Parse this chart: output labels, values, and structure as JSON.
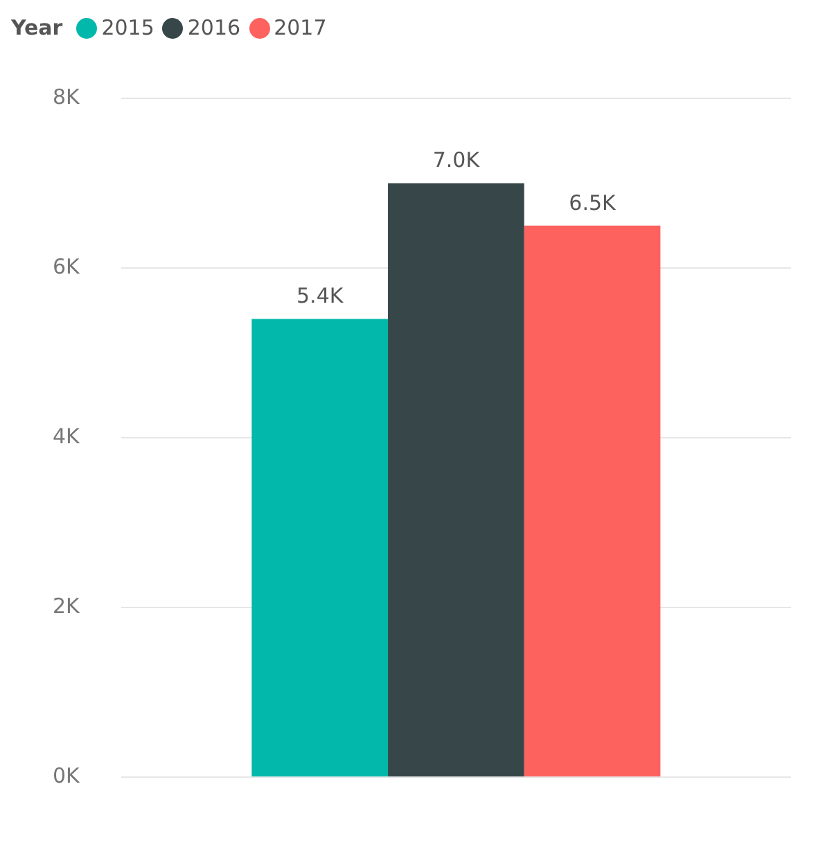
{
  "chart_data": {
    "type": "bar",
    "legend_title": "Year",
    "categories": [
      null
    ],
    "series": [
      {
        "name": "2015",
        "color": "#01b8aa",
        "values": [
          5400
        ],
        "value_labels": [
          "5.4K"
        ]
      },
      {
        "name": "2016",
        "color": "#374649",
        "values": [
          7000
        ],
        "value_labels": [
          "7.0K"
        ]
      },
      {
        "name": "2017",
        "color": "#fd625e",
        "values": [
          6500
        ],
        "value_labels": [
          "6.5K"
        ]
      }
    ],
    "ylim": [
      0,
      8000
    ],
    "yticks": [
      {
        "value": 0,
        "label": "0K"
      },
      {
        "value": 2000,
        "label": "2K"
      },
      {
        "value": 4000,
        "label": "4K"
      },
      {
        "value": 6000,
        "label": "6K"
      },
      {
        "value": 8000,
        "label": "8K"
      }
    ],
    "grid": "y",
    "legend": "top left",
    "tick_labels": "y"
  }
}
